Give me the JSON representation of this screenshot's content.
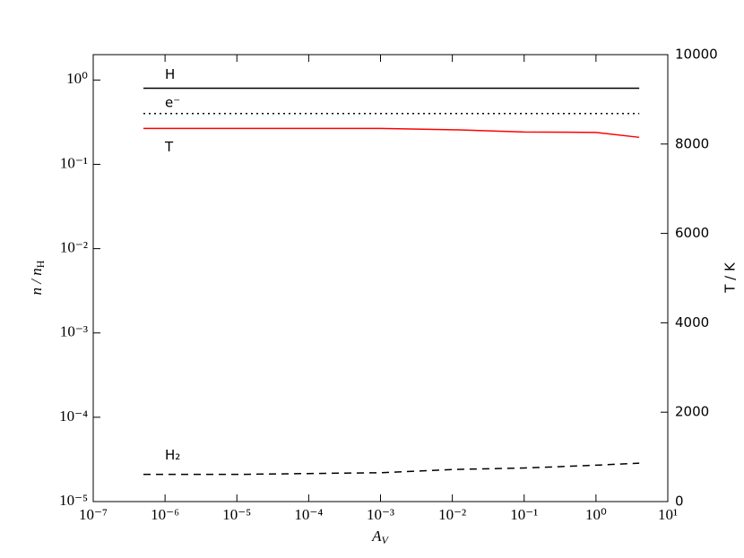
{
  "chart_data": {
    "type": "line",
    "x_label": {
      "main": "A",
      "sub": "V"
    },
    "y_label": {
      "main": "n / n",
      "sub": "H"
    },
    "y2_label": "T / K",
    "x": [
      5e-07,
      1e-06,
      1e-05,
      0.0001,
      0.001,
      0.01,
      0.1,
      1,
      4
    ],
    "xscale": "log",
    "yscale": "log",
    "xlim": [
      1e-07,
      10
    ],
    "ylim": [
      1e-05,
      2
    ],
    "y2lim": [
      0,
      10000
    ],
    "xticks": [
      {
        "value": 1e-07,
        "label": "10⁻⁷"
      },
      {
        "value": 1e-06,
        "label": "10⁻⁶"
      },
      {
        "value": 1e-05,
        "label": "10⁻⁵"
      },
      {
        "value": 0.0001,
        "label": "10⁻⁴"
      },
      {
        "value": 0.001,
        "label": "10⁻³"
      },
      {
        "value": 0.01,
        "label": "10⁻²"
      },
      {
        "value": 0.1,
        "label": "10⁻¹"
      },
      {
        "value": 1,
        "label": "10⁰"
      },
      {
        "value": 10,
        "label": "10¹"
      }
    ],
    "yticks": [
      {
        "value": 1e-05,
        "label": "10⁻⁵"
      },
      {
        "value": 0.0001,
        "label": "10⁻⁴"
      },
      {
        "value": 0.001,
        "label": "10⁻³"
      },
      {
        "value": 0.01,
        "label": "10⁻²"
      },
      {
        "value": 0.1,
        "label": "10⁻¹"
      },
      {
        "value": 1,
        "label": "10⁰"
      }
    ],
    "y2ticks": [
      0,
      2000,
      4000,
      6000,
      8000,
      10000
    ],
    "series": [
      {
        "name": "H",
        "color": "#000000",
        "style": "solid",
        "values": [
          0.8,
          0.8,
          0.8,
          0.8,
          0.8,
          0.8,
          0.8,
          0.8,
          0.8
        ]
      },
      {
        "name": "e⁻",
        "color": "#000000",
        "style": "dotted",
        "values": [
          0.4,
          0.4,
          0.4,
          0.4,
          0.4,
          0.4,
          0.4,
          0.4,
          0.4
        ]
      },
      {
        "name": "T",
        "color": "#ff0000",
        "style": "solid",
        "axis": "y2",
        "values": [
          8350,
          8350,
          8350,
          8350,
          8350,
          8320,
          8270,
          8260,
          8150
        ]
      },
      {
        "name": "H₂",
        "color": "#000000",
        "style": "dashed",
        "values": [
          2.1e-05,
          2.1e-05,
          2.1e-05,
          2.15e-05,
          2.2e-05,
          2.4e-05,
          2.5e-05,
          2.7e-05,
          2.85e-05
        ]
      }
    ]
  }
}
